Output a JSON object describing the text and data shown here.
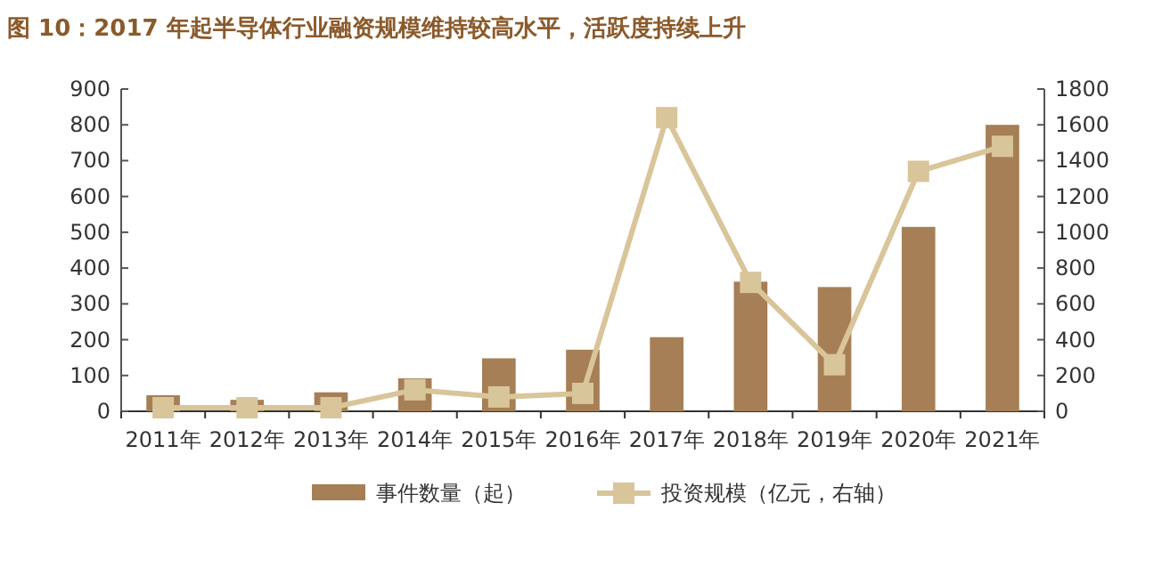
{
  "chart_data": {
    "type": "bar",
    "title": "图 10：2017 年起半导体行业融资规模维持较高水平，活跃度持续上升",
    "categories": [
      "2011年",
      "2012年",
      "2013年",
      "2014年",
      "2015年",
      "2016年",
      "2017年",
      "2018年",
      "2019年",
      "2020年",
      "2021年"
    ],
    "series": [
      {
        "name": "事件数量（起）",
        "color": "#a67f56",
        "values": [
          45,
          32,
          53,
          92,
          148,
          172,
          207,
          362,
          347,
          515,
          800
        ]
      },
      {
        "name": "投资规模（亿元，右轴）",
        "type": "line",
        "axis": "y2",
        "color": "#d9c59a",
        "marker": "square",
        "values": [
          20,
          20,
          20,
          120,
          80,
          100,
          1640,
          720,
          260,
          1340,
          1480
        ]
      }
    ],
    "ylim": [
      0,
      900
    ],
    "yticks": [
      0,
      100,
      200,
      300,
      400,
      500,
      600,
      700,
      800,
      900
    ],
    "y2lim": [
      0,
      1800
    ],
    "y2ticks": [
      0,
      200,
      400,
      600,
      800,
      1000,
      1200,
      1400,
      1600,
      1800
    ],
    "grid": false,
    "legend": "bottom"
  }
}
